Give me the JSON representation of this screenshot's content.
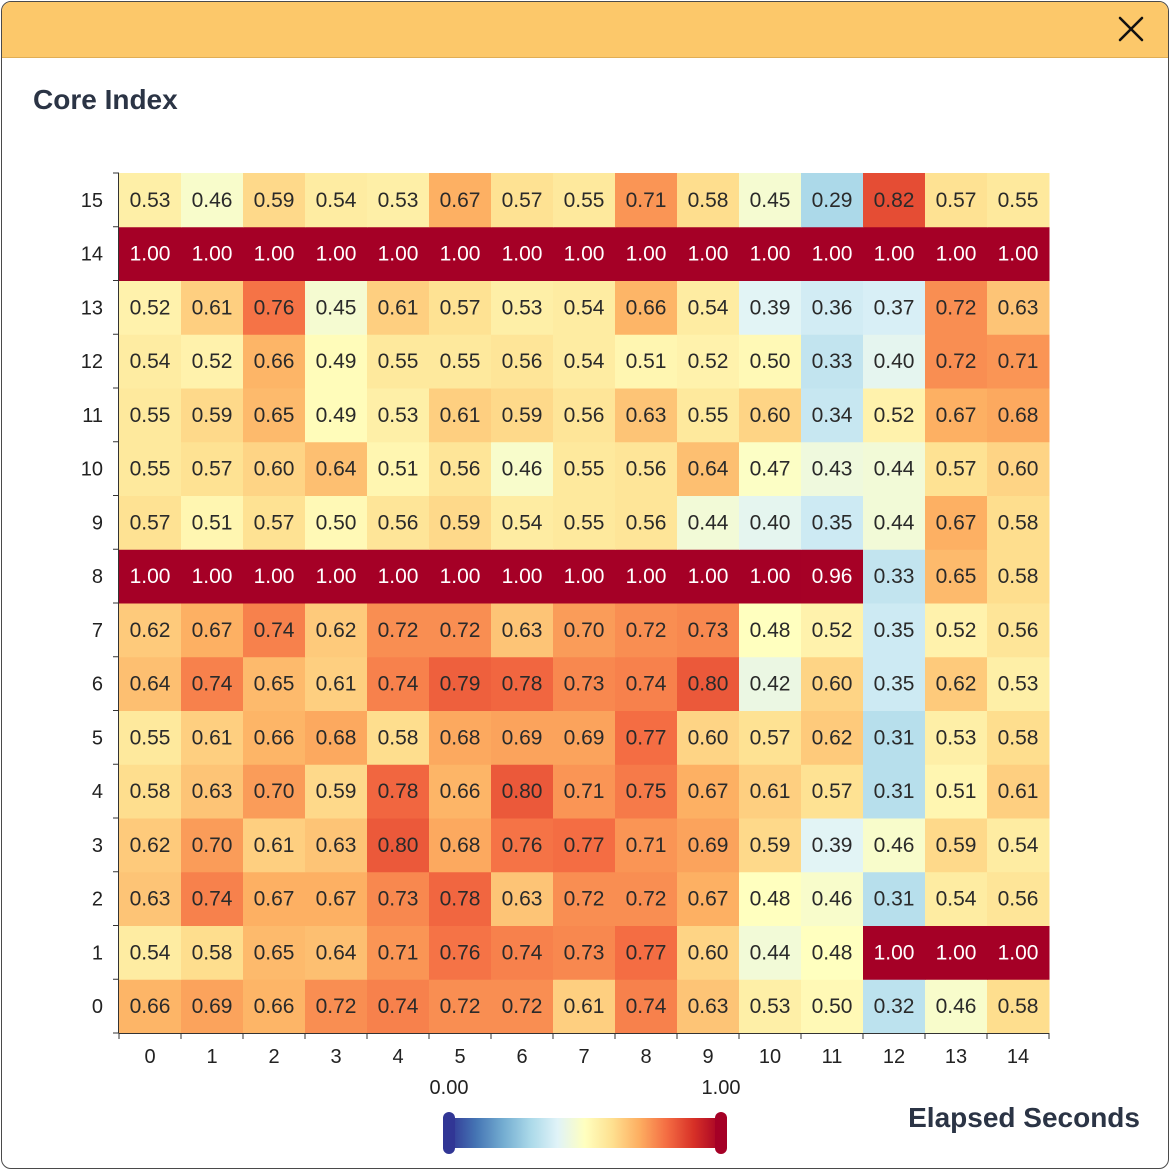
{
  "window": {
    "close_icon": "close-icon"
  },
  "chart_data": {
    "type": "heatmap",
    "ylabel": "Core Index",
    "legend_title": "Elapsed Seconds",
    "x_categories": [
      "0",
      "1",
      "2",
      "3",
      "4",
      "5",
      "6",
      "7",
      "8",
      "9",
      "10",
      "11",
      "12",
      "13",
      "14"
    ],
    "y_categories": [
      "0",
      "1",
      "2",
      "3",
      "4",
      "5",
      "6",
      "7",
      "8",
      "9",
      "10",
      "11",
      "12",
      "13",
      "14",
      "15"
    ],
    "color_range": [
      0.0,
      1.0
    ],
    "color_range_labels": [
      "0.00",
      "1.00"
    ],
    "colormap": "RdYlBu_r",
    "values": [
      [
        "0.66",
        "0.69",
        "0.66",
        "0.72",
        "0.74",
        "0.72",
        "0.72",
        "0.61",
        "0.74",
        "0.63",
        "0.53",
        "0.50",
        "0.32",
        "0.46",
        "0.58"
      ],
      [
        "0.54",
        "0.58",
        "0.65",
        "0.64",
        "0.71",
        "0.76",
        "0.74",
        "0.73",
        "0.77",
        "0.60",
        "0.44",
        "0.48",
        "1.00",
        "1.00",
        "1.00"
      ],
      [
        "0.63",
        "0.74",
        "0.67",
        "0.67",
        "0.73",
        "0.78",
        "0.63",
        "0.72",
        "0.72",
        "0.67",
        "0.48",
        "0.46",
        "0.31",
        "0.54",
        "0.56"
      ],
      [
        "0.62",
        "0.70",
        "0.61",
        "0.63",
        "0.80",
        "0.68",
        "0.76",
        "0.77",
        "0.71",
        "0.69",
        "0.59",
        "0.39",
        "0.46",
        "0.59",
        "0.54"
      ],
      [
        "0.58",
        "0.63",
        "0.70",
        "0.59",
        "0.78",
        "0.66",
        "0.80",
        "0.71",
        "0.75",
        "0.67",
        "0.61",
        "0.57",
        "0.31",
        "0.51",
        "0.61"
      ],
      [
        "0.55",
        "0.61",
        "0.66",
        "0.68",
        "0.58",
        "0.68",
        "0.69",
        "0.69",
        "0.77",
        "0.60",
        "0.57",
        "0.62",
        "0.31",
        "0.53",
        "0.58"
      ],
      [
        "0.64",
        "0.74",
        "0.65",
        "0.61",
        "0.74",
        "0.79",
        "0.78",
        "0.73",
        "0.74",
        "0.80",
        "0.42",
        "0.60",
        "0.35",
        "0.62",
        "0.53"
      ],
      [
        "0.62",
        "0.67",
        "0.74",
        "0.62",
        "0.72",
        "0.72",
        "0.63",
        "0.70",
        "0.72",
        "0.73",
        "0.48",
        "0.52",
        "0.35",
        "0.52",
        "0.56"
      ],
      [
        "1.00",
        "1.00",
        "1.00",
        "1.00",
        "1.00",
        "1.00",
        "1.00",
        "1.00",
        "1.00",
        "1.00",
        "1.00",
        "0.96",
        "0.33",
        "0.65",
        "0.58"
      ],
      [
        "0.57",
        "0.51",
        "0.57",
        "0.50",
        "0.56",
        "0.59",
        "0.54",
        "0.55",
        "0.56",
        "0.44",
        "0.40",
        "0.35",
        "0.44",
        "0.67",
        "0.58"
      ],
      [
        "0.55",
        "0.57",
        "0.60",
        "0.64",
        "0.51",
        "0.56",
        "0.46",
        "0.55",
        "0.56",
        "0.64",
        "0.47",
        "0.43",
        "0.44",
        "0.57",
        "0.60"
      ],
      [
        "0.55",
        "0.59",
        "0.65",
        "0.49",
        "0.53",
        "0.61",
        "0.59",
        "0.56",
        "0.63",
        "0.55",
        "0.60",
        "0.34",
        "0.52",
        "0.67",
        "0.68"
      ],
      [
        "0.54",
        "0.52",
        "0.66",
        "0.49",
        "0.55",
        "0.55",
        "0.56",
        "0.54",
        "0.51",
        "0.52",
        "0.50",
        "0.33",
        "0.40",
        "0.72",
        "0.71"
      ],
      [
        "0.52",
        "0.61",
        "0.76",
        "0.45",
        "0.61",
        "0.57",
        "0.53",
        "0.54",
        "0.66",
        "0.54",
        "0.39",
        "0.36",
        "0.37",
        "0.72",
        "0.63"
      ],
      [
        "1.00",
        "1.00",
        "1.00",
        "1.00",
        "1.00",
        "1.00",
        "1.00",
        "1.00",
        "1.00",
        "1.00",
        "1.00",
        "1.00",
        "1.00",
        "1.00",
        "1.00"
      ],
      [
        "0.53",
        "0.46",
        "0.59",
        "0.54",
        "0.53",
        "0.67",
        "0.57",
        "0.55",
        "0.71",
        "0.58",
        "0.45",
        "0.29",
        "0.82",
        "0.57",
        "0.55"
      ]
    ]
  }
}
